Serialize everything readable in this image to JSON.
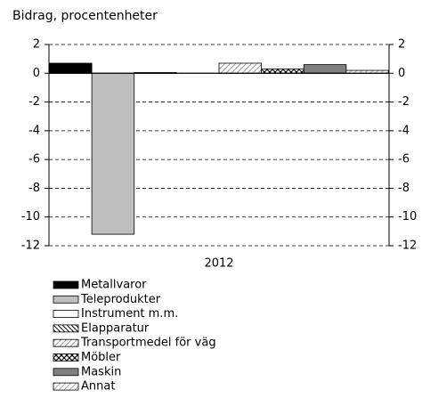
{
  "chart_data": {
    "type": "bar",
    "title": "Bidrag, procentenheter",
    "categories": [
      "2012"
    ],
    "series": [
      {
        "name": "Metallvaror",
        "color": "#000000",
        "values": [
          0.7
        ]
      },
      {
        "name": "Teleprodukter",
        "color": "#bfbfbf",
        "values": [
          -11.2
        ]
      },
      {
        "name": "Instrument m.m.",
        "color": "#ffffff",
        "values": [
          0.05
        ]
      },
      {
        "name": "Elapparatur",
        "color": "#ffffff",
        "pattern": "back-diagonal",
        "values": [
          0.0
        ]
      },
      {
        "name": "Transportmedel för väg",
        "color": "#ffffff",
        "pattern": "diagonal",
        "values": [
          0.7
        ]
      },
      {
        "name": "Möbler",
        "color": "#ffffff",
        "pattern": "cross",
        "values": [
          0.3
        ]
      },
      {
        "name": "Maskin",
        "color": "#808080",
        "values": [
          0.6
        ]
      },
      {
        "name": "Annat",
        "color": "#ffffff",
        "pattern": "light-diagonal",
        "values": [
          0.2
        ]
      }
    ],
    "ylim": [
      -12,
      2
    ],
    "yticks": [
      2,
      0,
      -2,
      -4,
      -6,
      -8,
      -10,
      -12
    ],
    "y2lim": [
      -12,
      2
    ],
    "y2ticks": [
      2,
      0,
      -2,
      -4,
      -6,
      -8,
      -10,
      -12
    ],
    "grid": true
  }
}
